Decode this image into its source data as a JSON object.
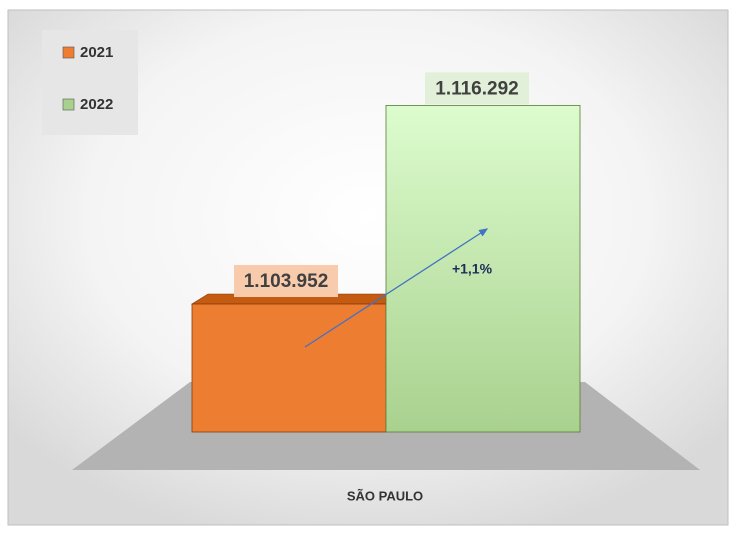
{
  "chart_data": {
    "type": "bar3d",
    "categories": [
      "SÃO PAULO"
    ],
    "series": [
      {
        "name": "2021",
        "color": "#ed7d31",
        "values": [
          1103952
        ],
        "value_labels": [
          "1.103.952"
        ]
      },
      {
        "name": "2022",
        "color": "#a9d18e",
        "values": [
          1116292
        ],
        "value_labels": [
          "1.116.292"
        ]
      }
    ],
    "ylim": [
      1096000,
      1117000
    ],
    "annotation": "+1,1%"
  }
}
